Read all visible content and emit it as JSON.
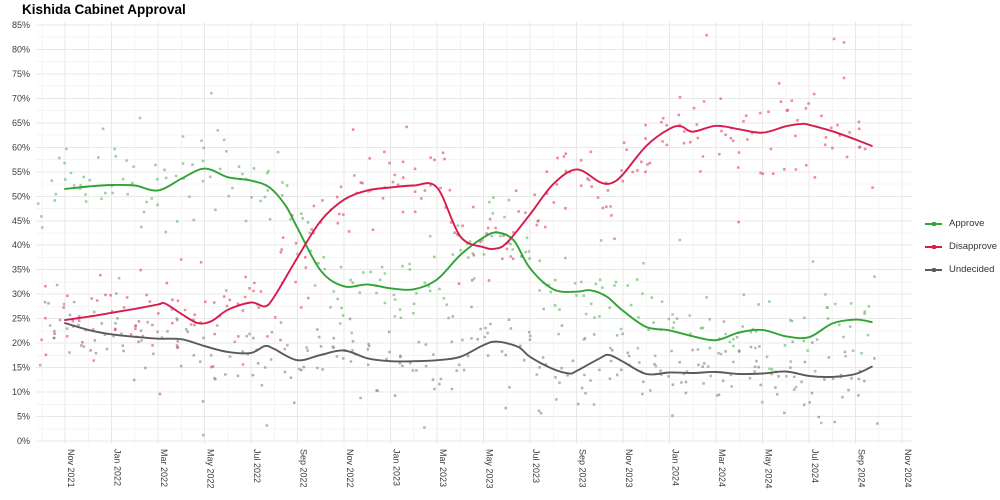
{
  "chart_data": {
    "type": "scatter",
    "subtype": "poll-scatter-with-smoothed-trend-lines",
    "title": "Kishida Cabinet Approval",
    "x_axis": {
      "tick_labels": [
        "Nov 2021",
        "Jan 2022",
        "Mar 2022",
        "May 2022",
        "Jul 2022",
        "Sep 2022",
        "Nov 2022",
        "Jan 2023",
        "Mar 2023",
        "May 2023",
        "Jul 2023",
        "Sep 2023",
        "Nov 2023",
        "Jan 2024",
        "Mar 2024",
        "May 2024",
        "Jul 2024",
        "Sep 2024",
        "Nov 2024"
      ],
      "tick_month_offsets": [
        0,
        2,
        4,
        6,
        8,
        10,
        12,
        14,
        16,
        18,
        20,
        22,
        24,
        26,
        28,
        30,
        32,
        34,
        36
      ],
      "label_rotation_deg": 90
    },
    "y_axis": {
      "min": 0,
      "max": 85,
      "tick_step": 5,
      "tick_suffix": "%"
    },
    "grid": "on",
    "legend": {
      "position": "right",
      "entries": [
        "Approve",
        "Disapprove",
        "Undecided"
      ]
    },
    "series": [
      {
        "name": "Approve",
        "color": "#31a335",
        "point_color": "#63b55f",
        "trend": [
          [
            0,
            51.5
          ],
          [
            1,
            52.0
          ],
          [
            2,
            52.3
          ],
          [
            3,
            52.2
          ],
          [
            4,
            51.2
          ],
          [
            5,
            53.6
          ],
          [
            5.8,
            55.5
          ],
          [
            6.3,
            55.4
          ],
          [
            7,
            53.9
          ],
          [
            8,
            53.2
          ],
          [
            8.8,
            51.8
          ],
          [
            9.5,
            48.0
          ],
          [
            10,
            43.5
          ],
          [
            11,
            34.8
          ],
          [
            12,
            31.6
          ],
          [
            13,
            32.0
          ],
          [
            14,
            31.2
          ],
          [
            15,
            31.0
          ],
          [
            16,
            33.0
          ],
          [
            17,
            38.0
          ],
          [
            18,
            41.6
          ],
          [
            18.6,
            42.6
          ],
          [
            19.3,
            41.0
          ],
          [
            20,
            35.3
          ],
          [
            21,
            31.0
          ],
          [
            22,
            30.5
          ],
          [
            22.6,
            30.8
          ],
          [
            23.3,
            29.5
          ],
          [
            24,
            26.6
          ],
          [
            25,
            23.3
          ],
          [
            26,
            22.6
          ],
          [
            27,
            21.4
          ],
          [
            28,
            20.6
          ],
          [
            29,
            22.2
          ],
          [
            30,
            22.7
          ],
          [
            31,
            21.4
          ],
          [
            32,
            21.2
          ],
          [
            33,
            24.0
          ],
          [
            34,
            24.8
          ],
          [
            34.7,
            24.3
          ]
        ]
      },
      {
        "name": "Disapprove",
        "color": "#d81b4c",
        "point_color": "#e0436a",
        "trend": [
          [
            0,
            24.7
          ],
          [
            1,
            25.4
          ],
          [
            2,
            26.2
          ],
          [
            3,
            27.0
          ],
          [
            4,
            27.9
          ],
          [
            4.3,
            28.1
          ],
          [
            5,
            26.0
          ],
          [
            5.7,
            24.1
          ],
          [
            6.3,
            24.5
          ],
          [
            7,
            26.8
          ],
          [
            8,
            28.3
          ],
          [
            8.6,
            27.5
          ],
          [
            9,
            29.5
          ],
          [
            10,
            37.5
          ],
          [
            11,
            45.0
          ],
          [
            12,
            49.3
          ],
          [
            13,
            51.2
          ],
          [
            14,
            51.8
          ],
          [
            15,
            52.2
          ],
          [
            16,
            51.8
          ],
          [
            17,
            41.8
          ],
          [
            18,
            39.6
          ],
          [
            18.5,
            39.3
          ],
          [
            19,
            40.5
          ],
          [
            20,
            46.3
          ],
          [
            21,
            52.5
          ],
          [
            22,
            55.5
          ],
          [
            23,
            52.9
          ],
          [
            23.5,
            52.7
          ],
          [
            24,
            54.5
          ],
          [
            25,
            60.3
          ],
          [
            26,
            63.8
          ],
          [
            26.5,
            64.3
          ],
          [
            27,
            63.2
          ],
          [
            28,
            64.4
          ],
          [
            29,
            63.7
          ],
          [
            30,
            63.0
          ],
          [
            31,
            64.3
          ],
          [
            31.7,
            64.8
          ],
          [
            32,
            64.6
          ],
          [
            33,
            63.3
          ],
          [
            34,
            61.6
          ],
          [
            34.7,
            60.3
          ]
        ]
      },
      {
        "name": "Undecided",
        "color": "#5a5a5a",
        "point_color": "#858585",
        "trend": [
          [
            0,
            24.1
          ],
          [
            1,
            22.7
          ],
          [
            2,
            21.8
          ],
          [
            3,
            21.3
          ],
          [
            4,
            20.9
          ],
          [
            5,
            20.8
          ],
          [
            6,
            19.4
          ],
          [
            7,
            18.2
          ],
          [
            8,
            18.0
          ],
          [
            8.6,
            19.4
          ],
          [
            9,
            18.8
          ],
          [
            10,
            16.5
          ],
          [
            11,
            17.6
          ],
          [
            12,
            18.5
          ],
          [
            13,
            16.9
          ],
          [
            14,
            16.3
          ],
          [
            15,
            16.3
          ],
          [
            16,
            16.5
          ],
          [
            17,
            17.2
          ],
          [
            18,
            19.6
          ],
          [
            18.6,
            20.3
          ],
          [
            19.5,
            19.2
          ],
          [
            20,
            17.2
          ],
          [
            21,
            14.7
          ],
          [
            21.7,
            13.8
          ],
          [
            22,
            14.3
          ],
          [
            23,
            16.9
          ],
          [
            23.4,
            17.6
          ],
          [
            24,
            16.2
          ],
          [
            25,
            13.7
          ],
          [
            26,
            14.0
          ],
          [
            27,
            13.9
          ],
          [
            28,
            14.1
          ],
          [
            29,
            13.7
          ],
          [
            30,
            13.8
          ],
          [
            31,
            14.2
          ],
          [
            32,
            13.3
          ],
          [
            33,
            13.1
          ],
          [
            34,
            13.7
          ],
          [
            34.7,
            15.2
          ]
        ]
      }
    ],
    "scatter_cloud": {
      "note": "individual poll results scattered around each trend line",
      "points_per_month": 7.5,
      "month_range": [
        -1.05,
        34.75
      ],
      "sd": [
        4.3,
        4.6,
        3.6
      ],
      "outlier_rate": 0.13,
      "outlier_mult": 2.1,
      "seed": 20211004
    }
  }
}
